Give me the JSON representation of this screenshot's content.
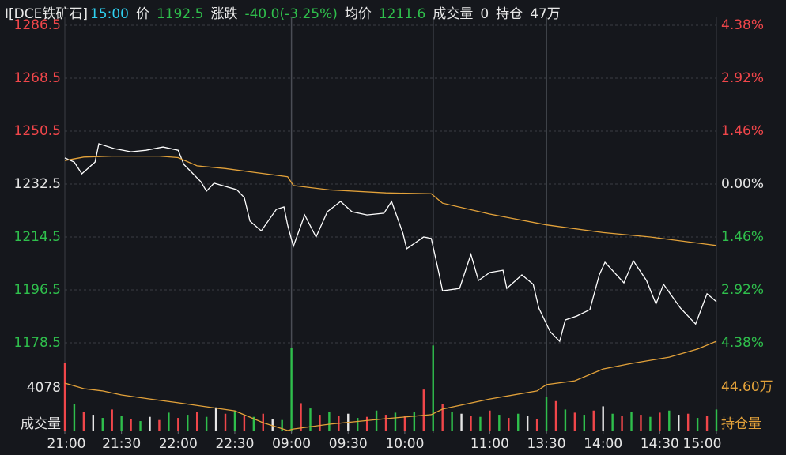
{
  "header": {
    "symbol": "I[DCE铁矿石]",
    "time": "15:00",
    "price_label": "价",
    "price": 1192.5,
    "change_label": "涨跌",
    "change": "-40.0(-3.25%)",
    "avg_label": "均价",
    "avg": 1211.6,
    "volume_label": "成交量",
    "volume": 0,
    "oi_label": "持仓",
    "oi": "47万"
  },
  "chart_data": [
    {
      "type": "line",
      "xlim": [
        0,
        345
      ],
      "separators": [
        120,
        195,
        255
      ],
      "grid": true,
      "ylim": [
        1178.5,
        1286.5
      ],
      "yticks": [
        1286.5,
        1268.5,
        1250.5,
        1232.5,
        1214.5,
        1196.5,
        1178.5
      ],
      "y2lim": [
        -4.38,
        4.38
      ],
      "y2ticks": [
        {
          "value": 4.38,
          "label": "4.38%"
        },
        {
          "value": 2.92,
          "label": "2.92%"
        },
        {
          "value": 1.46,
          "label": "1.46%"
        },
        {
          "value": 0,
          "label": "0.00%"
        },
        {
          "value": -1.46,
          "label": "1.46%"
        },
        {
          "value": -2.92,
          "label": "2.92%"
        },
        {
          "value": -4.38,
          "label": "4.38%"
        }
      ],
      "up_color": "#f0464a",
      "down_color": "#2fbf4c",
      "flat_color": "#e6e6e6",
      "series": [
        {
          "color": "#ffffff",
          "x": [
            0,
            5,
            9,
            16,
            18,
            26,
            35,
            43,
            52,
            60,
            63,
            72,
            75,
            79,
            91,
            95,
            98,
            104,
            112,
            116,
            118,
            121,
            127,
            133,
            139,
            146,
            152,
            160,
            169,
            173,
            179,
            181,
            190,
            194,
            198,
            200,
            209,
            215,
            219,
            225,
            232,
            234,
            242,
            248,
            251,
            257,
            262,
            265,
            271,
            278,
            283,
            286,
            296,
            301,
            308,
            313,
            317,
            326,
            334,
            340,
            345
          ],
          "values": [
            1241.4,
            1240.0,
            1236.0,
            1240.0,
            1246.2,
            1244.6,
            1243.5,
            1244.0,
            1245.1,
            1244.0,
            1239.2,
            1233.3,
            1230.1,
            1232.8,
            1230.6,
            1227.9,
            1219.9,
            1216.6,
            1223.9,
            1224.7,
            1218.5,
            1211.3,
            1222.0,
            1214.5,
            1223.1,
            1226.6,
            1223.1,
            1222.0,
            1222.6,
            1226.6,
            1215.8,
            1210.5,
            1214.5,
            1214.0,
            1202.4,
            1196.2,
            1197.0,
            1208.6,
            1199.7,
            1202.4,
            1203.2,
            1197.0,
            1201.6,
            1198.4,
            1190.3,
            1182.3,
            1179.0,
            1186.3,
            1187.6,
            1189.8,
            1201.6,
            1205.9,
            1198.9,
            1206.4,
            1199.7,
            1191.7,
            1198.4,
            1190.3,
            1184.9,
            1195.2,
            1192.5
          ]
        },
        {
          "color": "#e3a23a",
          "x": [
            0,
            10,
            25,
            50,
            60,
            70,
            85,
            100,
            118,
            121,
            140,
            170,
            194,
            200,
            225,
            255,
            285,
            310,
            345
          ],
          "values": [
            1240.5,
            1241.7,
            1242.0,
            1242.0,
            1241.5,
            1238.7,
            1237.8,
            1236.5,
            1235.0,
            1232.0,
            1230.5,
            1229.5,
            1229.2,
            1226.0,
            1222.3,
            1218.6,
            1216.0,
            1214.5,
            1211.6
          ]
        }
      ]
    },
    {
      "type": "bar",
      "xlim": [
        0,
        345
      ],
      "separators": [
        120,
        195,
        255
      ],
      "xticks": [
        {
          "value": 0,
          "label": "21:00"
        },
        {
          "value": 30,
          "label": "21:30"
        },
        {
          "value": 60,
          "label": "22:00"
        },
        {
          "value": 90,
          "label": "22:30"
        },
        {
          "value": 120,
          "label": "09:00"
        },
        {
          "value": 150,
          "label": "09:30"
        },
        {
          "value": 180,
          "label": "10:00"
        },
        {
          "value": 225,
          "label": "11:00"
        },
        {
          "value": 255,
          "label": "13:30"
        },
        {
          "value": 285,
          "label": "14:00"
        },
        {
          "value": 315,
          "label": "14:30"
        },
        {
          "value": 345,
          "label": "15:00"
        }
      ],
      "ylabel": "成交量",
      "ylim": [
        0,
        8500
      ],
      "yticks": [
        4078
      ],
      "y2label": "持仓量",
      "y2lim": [
        42.33,
        47.0
      ],
      "y2ticks": [
        {
          "value": 44.6,
          "label": "44.60万"
        }
      ],
      "y2color": "#e3a23a",
      "series": [
        {
          "x": [
            0,
            5,
            10,
            15,
            20,
            25,
            30,
            35,
            40,
            45,
            50,
            55,
            60,
            65,
            70,
            75,
            80,
            85,
            90,
            95,
            100,
            105,
            110,
            115,
            120,
            125,
            130,
            135,
            140,
            145,
            150,
            155,
            160,
            165,
            170,
            175,
            180,
            185,
            190,
            195,
            200,
            205,
            210,
            215,
            220,
            225,
            230,
            235,
            240,
            245,
            250,
            255,
            260,
            265,
            270,
            275,
            280,
            285,
            290,
            295,
            300,
            305,
            310,
            315,
            320,
            325,
            330,
            335,
            340,
            345
          ],
          "values": [
            6400,
            2500,
            1800,
            1500,
            1200,
            2000,
            1400,
            1100,
            900,
            1300,
            1000,
            1700,
            1200,
            1500,
            1800,
            1300,
            2200,
            1600,
            1900,
            1400,
            1300,
            1600,
            1100,
            1000,
            7900,
            2600,
            2100,
            1500,
            1800,
            1400,
            1600,
            1200,
            1300,
            1900,
            1500,
            1700,
            1400,
            1800,
            3900,
            8100,
            2500,
            1800,
            1600,
            1400,
            1300,
            1900,
            1500,
            1200,
            1600,
            1400,
            1100,
            3200,
            2800,
            2000,
            1700,
            1500,
            1900,
            2300,
            1600,
            1400,
            1800,
            1500,
            1300,
            1700,
            1900,
            1500,
            1600,
            1200,
            1400,
            2000
          ],
          "colors": [
            "#f0464a",
            "#2fbf4c",
            "#f0464a",
            "#e6e6e6",
            "#2fbf4c",
            "#f0464a",
            "#2fbf4c",
            "#f0464a",
            "#2fbf4c",
            "#e6e6e6",
            "#f0464a",
            "#2fbf4c",
            "#f0464a",
            "#2fbf4c",
            "#f0464a",
            "#2fbf4c",
            "#e6e6e6",
            "#f0464a",
            "#2fbf4c",
            "#f0464a",
            "#2fbf4c",
            "#f0464a",
            "#e6e6e6",
            "#2fbf4c",
            "#2fbf4c",
            "#f0464a",
            "#2fbf4c",
            "#f0464a",
            "#2fbf4c",
            "#f0464a",
            "#e6e6e6",
            "#2fbf4c",
            "#f0464a",
            "#2fbf4c",
            "#f0464a",
            "#2fbf4c",
            "#f0464a",
            "#2fbf4c",
            "#f0464a",
            "#2fbf4c",
            "#f0464a",
            "#2fbf4c",
            "#e6e6e6",
            "#f0464a",
            "#2fbf4c",
            "#f0464a",
            "#2fbf4c",
            "#f0464a",
            "#2fbf4c",
            "#e6e6e6",
            "#f0464a",
            "#2fbf4c",
            "#f0464a",
            "#2fbf4c",
            "#f0464a",
            "#2fbf4c",
            "#f0464a",
            "#e6e6e6",
            "#2fbf4c",
            "#f0464a",
            "#2fbf4c",
            "#f0464a",
            "#2fbf4c",
            "#f0464a",
            "#2fbf4c",
            "#e6e6e6",
            "#f0464a",
            "#2fbf4c",
            "#f0464a",
            "#2fbf4c"
          ]
        },
        {
          "type": "line",
          "axis": "y2",
          "color": "#e3a23a",
          "x": [
            0,
            10,
            20,
            30,
            45,
            60,
            75,
            90,
            105,
            118,
            121,
            140,
            170,
            194,
            200,
            225,
            250,
            255,
            270,
            285,
            300,
            320,
            335,
            345
          ],
          "values": [
            44.81,
            44.52,
            44.4,
            44.19,
            43.98,
            43.78,
            43.57,
            43.36,
            42.74,
            42.33,
            42.41,
            42.66,
            42.95,
            43.16,
            43.45,
            43.98,
            44.4,
            44.73,
            44.93,
            45.55,
            45.84,
            46.17,
            46.59,
            47.0
          ]
        }
      ]
    }
  ]
}
